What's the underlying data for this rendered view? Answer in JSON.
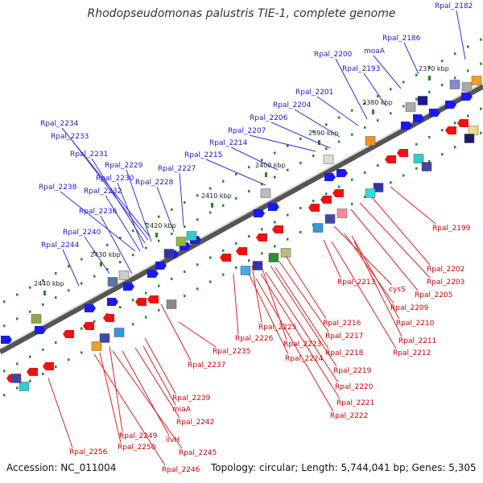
{
  "title": "Rhodopseudomonas palustris TIE-1, complete genome",
  "footer": {
    "accession": "Accession: NC_011004",
    "topology": "Topology: circular; Length: 5,744,041 bp; Genes: 5,305"
  },
  "colors": {
    "forward_label": "#1a1acc",
    "reverse_label": "#cc0000",
    "forward_arrow": "#1a1aee",
    "reverse_arrow": "#ee1111",
    "backbone": "#888888",
    "tick": "#228822"
  },
  "kbp_ticks": [
    "2370 kbp",
    "2380 kbp",
    "2390 kbp",
    "2400 kbp",
    "2410 kbp",
    "2420 kbp",
    "2430 kbp",
    "2440 kbp"
  ],
  "forward_labels": [
    "Rpal_2182",
    "Rpal_2186",
    "moaA",
    "Rpal_2200",
    "Rpal_2193",
    "Rpal_2201",
    "Rpal_2204",
    "Rpal_2206",
    "Rpal_2207",
    "Rpal_2214",
    "Rpal_2215",
    "Rpal_2234",
    "Rpal_2233",
    "Rpal_2231",
    "Rpal_2229",
    "Rpal_2230",
    "Rpal_2232",
    "Rpal_2227",
    "Rpal_2228",
    "Rpal_2238",
    "Rpal_2236",
    "Rpal_2240",
    "Rpal_2244"
  ],
  "reverse_labels": [
    "Rpal_2199",
    "Rpal_2202",
    "Rpal_2203",
    "Rpal_2205",
    "cysS",
    "Rpal_2209",
    "Rpal_2213",
    "Rpal_2210",
    "Rpal_2211",
    "Rpal_2212",
    "Rpal_2216",
    "Rpal_2217",
    "Rpal_2225",
    "Rpal_2226",
    "Rpal_2223",
    "Rpal_2218",
    "Rpal_2224",
    "Rpal_2219",
    "Rpal_2220",
    "Rpal_2221",
    "Rpal_2222",
    "Rpal_2235",
    "Rpal_2237",
    "Rpal_2239",
    "miaA",
    "Rpal_2242",
    "ilvH",
    "Rpal_2249",
    "Rpal_2250",
    "Rpal_2245",
    "Rpal_2256",
    "Rpal_2246"
  ]
}
